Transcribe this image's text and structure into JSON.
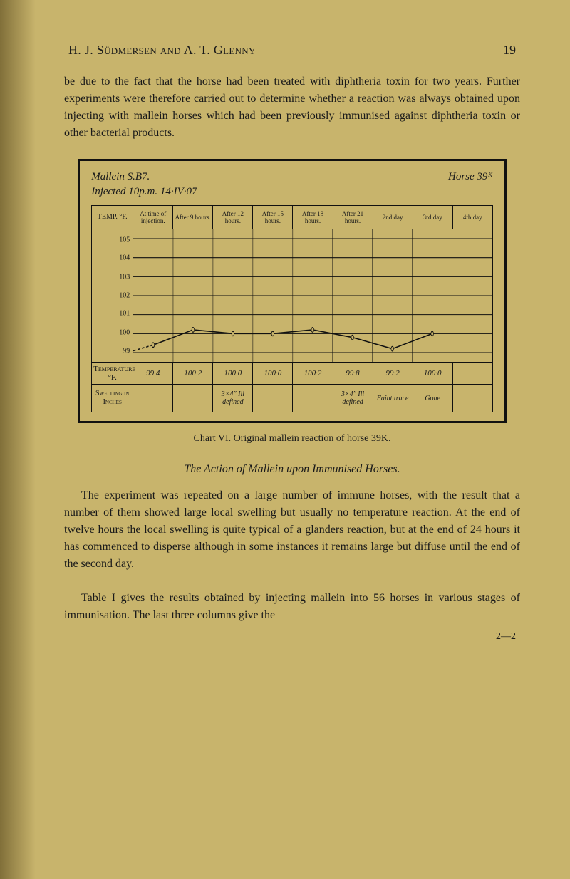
{
  "page": {
    "running_head_title": "H. J. Südmersen and A. T. Glenny",
    "page_number": "19",
    "paragraph1": "be due to the fact that the horse had been treated with diphtheria toxin for two years. Further experiments were therefore carried out to determine whether a reaction was always obtained upon injecting with mallein horses which had been previously immunised against diphtheria toxin or other bacterial products.",
    "caption": "Chart VI.  Original mallein reaction of horse 39K.",
    "section_title": "The Action of Mallein upon Immunised Horses.",
    "paragraph2": "The experiment was repeated on a large number of immune horses, with the result that a number of them showed large local swelling but usually no temperature reaction. At the end of twelve hours the local swelling is quite typical of a glanders reaction, but at the end of 24 hours it has commenced to disperse although in some instances it remains large but diffuse until the end of the second day.",
    "paragraph3": "Table I gives the results obtained by injecting mallein into 56 horses in various stages of immunisation. The last three columns give the",
    "signature": "2—2"
  },
  "chart": {
    "type": "line",
    "title_left": "Mallein  S.B7.",
    "title_right": "Horse 39ᴷ",
    "subtitle": "Injected  10p.m.    14·IV·07",
    "columns": [
      {
        "key": "label",
        "header": "TEMP. °F."
      },
      {
        "key": "t0",
        "header": "At time of injection."
      },
      {
        "key": "t9",
        "header": "After 9 hours."
      },
      {
        "key": "t12",
        "header": "After 12 hours."
      },
      {
        "key": "t15",
        "header": "After 15 hours."
      },
      {
        "key": "t18",
        "header": "After 18 hours."
      },
      {
        "key": "t21",
        "header": "After 21 hours."
      },
      {
        "key": "d2",
        "header": "2nd day"
      },
      {
        "key": "d3",
        "header": "3rd day"
      },
      {
        "key": "d4",
        "header": "4th day"
      }
    ],
    "y_axis": {
      "min": 99,
      "max": 105,
      "ticks": [
        105,
        104,
        103,
        102,
        101,
        100,
        99
      ]
    },
    "series": {
      "x_index": [
        0,
        1,
        2,
        3,
        4,
        5,
        6,
        7,
        8
      ],
      "y": [
        99.4,
        100.2,
        100.0,
        100.0,
        100.2,
        99.8,
        99.2,
        100.0,
        null
      ],
      "line_color": "#111111",
      "line_width": 1.6,
      "marker": "circle",
      "marker_size": 3.2,
      "marker_fill": "#c8b46c",
      "marker_stroke": "#111111"
    },
    "grid_color": "#111111",
    "background_color": "transparent",
    "temperature_row": {
      "label": "Temperature °F.",
      "values": [
        "99·4",
        "100·2",
        "100·0",
        "100·0",
        "100·2",
        "99·8",
        "99·2",
        "100·0",
        ""
      ]
    },
    "swelling_row": {
      "label": "Swelling in Inches",
      "values": [
        "",
        "",
        "3×4″ Ill defined",
        "",
        "",
        "3×4″ Ill defined",
        "Faint trace",
        "Gone",
        ""
      ]
    }
  }
}
